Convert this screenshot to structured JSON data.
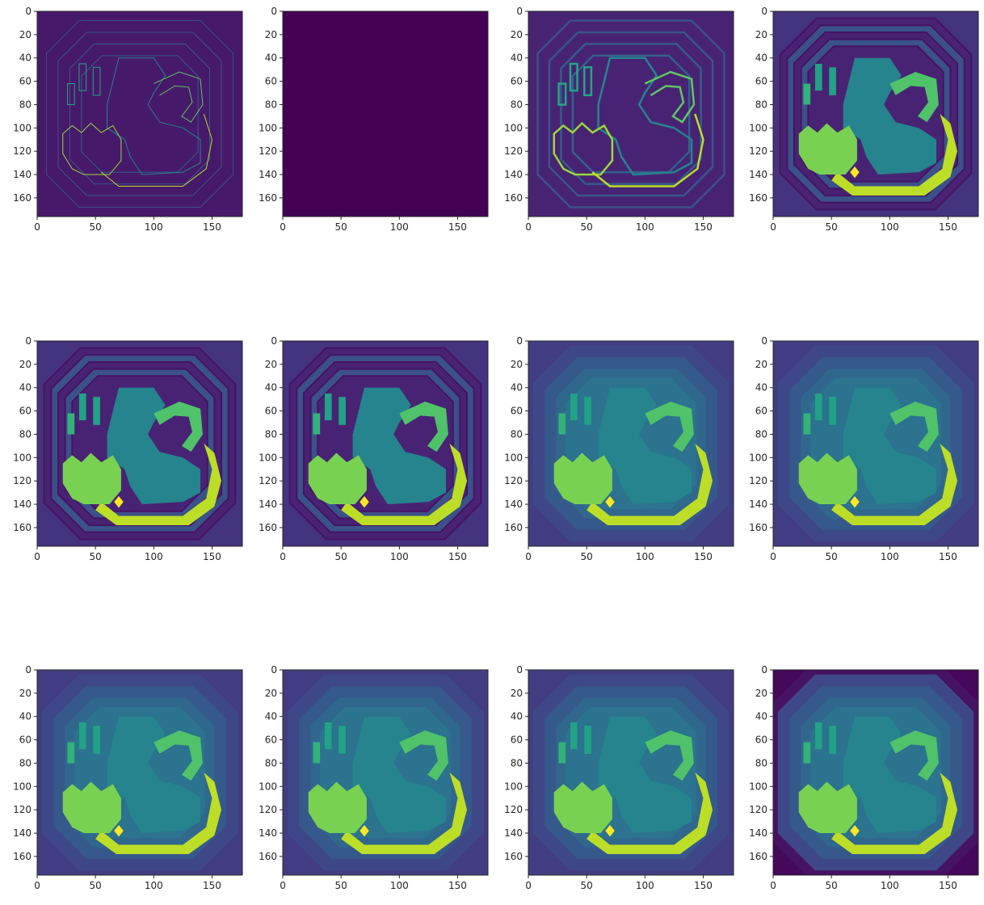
{
  "chart_data": {
    "type": "heatmap",
    "layout": "3 rows x 4 columns grid of image panels",
    "colormap": "viridis",
    "panel_common": {
      "xlim": [
        0,
        176
      ],
      "ylim": [
        176,
        0
      ],
      "xticks": [
        0,
        50,
        100,
        150
      ],
      "yticks": [
        0,
        20,
        40,
        60,
        80,
        100,
        120,
        140,
        160
      ],
      "grid": false
    },
    "panels": [
      {
        "index": 1,
        "description": "thin outlines / lattice edges of a grid map",
        "background_value": 0.07,
        "dominant_values": [
          0.07,
          0.3,
          0.6,
          0.85
        ]
      },
      {
        "index": 2,
        "description": "uniform empty panel",
        "background_value": 0.0,
        "dominant_values": [
          0.0
        ]
      },
      {
        "index": 3,
        "description": "thick outlines with lattice pattern",
        "background_value": 0.1,
        "dominant_values": [
          0.1,
          0.3,
          0.5,
          0.85,
          0.95
        ]
      },
      {
        "index": 4,
        "description": "filled regions beginning",
        "background_value": 0.15,
        "dominant_values": [
          0.15,
          0.3,
          0.45,
          0.75,
          0.9
        ]
      },
      {
        "index": 5,
        "description": "filled regions with contour rings",
        "background_value": 0.15,
        "dominant_values": [
          0.15,
          0.3,
          0.45,
          0.75,
          0.9
        ]
      },
      {
        "index": 6,
        "description": "filled regions with contour rings",
        "background_value": 0.15,
        "dominant_values": [
          0.15,
          0.3,
          0.45,
          0.75,
          0.9
        ]
      },
      {
        "index": 7,
        "description": "concentric smooth rings",
        "background_value": 0.18,
        "dominant_values": [
          0.18,
          0.28,
          0.38,
          0.45,
          0.75,
          0.9
        ]
      },
      {
        "index": 8,
        "description": "concentric smooth rings",
        "background_value": 0.18,
        "dominant_values": [
          0.18,
          0.28,
          0.38,
          0.45,
          0.75,
          0.9
        ]
      },
      {
        "index": 9,
        "description": "concentric smooth rings",
        "background_value": 0.18,
        "dominant_values": [
          0.18,
          0.28,
          0.38,
          0.45,
          0.75,
          0.9
        ]
      },
      {
        "index": 10,
        "description": "concentric smooth rings",
        "background_value": 0.18,
        "dominant_values": [
          0.18,
          0.28,
          0.38,
          0.45,
          0.75,
          0.9
        ]
      },
      {
        "index": 11,
        "description": "concentric smooth rings",
        "background_value": 0.18,
        "dominant_values": [
          0.18,
          0.28,
          0.38,
          0.45,
          0.75,
          0.9
        ]
      },
      {
        "index": 12,
        "description": "concentric rings with dark corners",
        "background_value": 0.05,
        "dominant_values": [
          0.05,
          0.18,
          0.28,
          0.38,
          0.75,
          0.9
        ]
      }
    ],
    "colors": {
      "v0": "#440154",
      "v1": "#46327e",
      "v2": "#365c8d",
      "v3": "#277f8e",
      "v4": "#1fa187",
      "v5": "#4ac16d",
      "v6": "#9fda3a",
      "v7": "#c9e020",
      "v8": "#fde725",
      "axis": "#262626"
    }
  }
}
